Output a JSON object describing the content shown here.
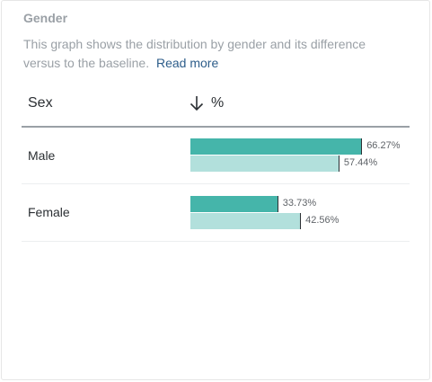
{
  "card": {
    "title": "Gender",
    "description": "This graph shows the distribution by gender and its difference versus to the baseline.",
    "read_more": "Read more"
  },
  "table": {
    "col_sex": "Sex",
    "col_pct": "%",
    "rows": [
      {
        "label": "Male",
        "value_label": "66.27%",
        "baseline_label": "57.44%"
      },
      {
        "label": "Female",
        "value_label": "33.73%",
        "baseline_label": "42.56%"
      }
    ]
  },
  "chart_data": {
    "type": "bar",
    "categories": [
      "Male",
      "Female"
    ],
    "series": [
      {
        "values": [
          66.27,
          33.73
        ]
      },
      {
        "values": [
          57.44,
          42.56
        ]
      }
    ],
    "xlim": [
      0,
      100
    ]
  },
  "colors": {
    "value_bar": "#45b5aa",
    "baseline_bar": "#b2e0dc"
  },
  "icons": {
    "sort": "arrow-down-icon"
  }
}
